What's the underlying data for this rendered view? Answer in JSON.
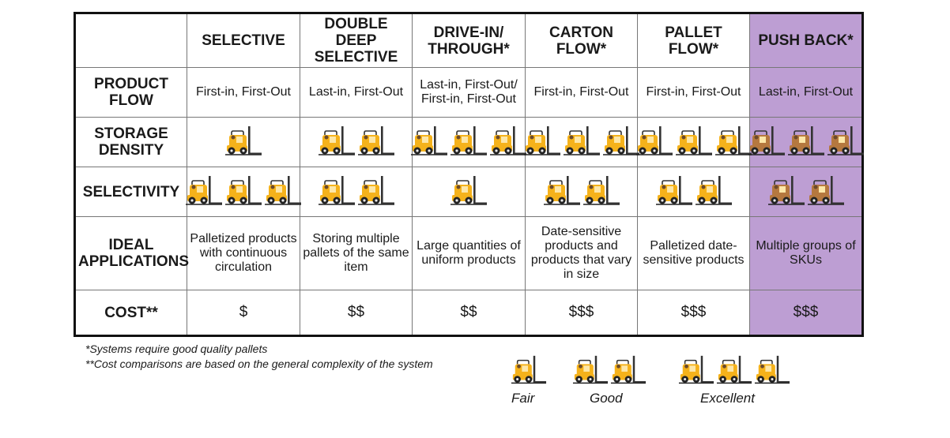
{
  "headers": [
    "",
    "SELECTIVE",
    "DOUBLE DEEP SELECTIVE",
    "DRIVE-IN/ THROUGH*",
    "CARTON FLOW*",
    "PALLET FLOW*",
    "PUSH BACK*"
  ],
  "rows": {
    "flow": {
      "label": "PRODUCT FLOW",
      "cells": [
        "First-in, First-Out",
        "Last-in, First-Out",
        "Last-in, First-Out/ First-in, First-Out",
        "First-in, First-Out",
        "First-in, First-Out",
        "Last-in, First-Out"
      ]
    },
    "density": {
      "label": "STORAGE DENSITY",
      "counts": [
        1,
        2,
        3,
        3,
        3,
        3
      ]
    },
    "selectivity": {
      "label": "SELECTIVITY",
      "counts": [
        3,
        2,
        1,
        2,
        2,
        2
      ]
    },
    "apps": {
      "label": "IDEAL APPLICATIONS",
      "cells": [
        "Palletized products with continuous circulation",
        "Storing multiple pallets of the same item",
        "Large quantities of uniform products",
        "Date-sensitive products and products that vary in size",
        "Palletized date-sensitive products",
        "Multiple groups of SKUs"
      ]
    },
    "cost": {
      "label": "COST**",
      "cells": [
        "$",
        "$$",
        "$$",
        "$$$",
        "$$$",
        "$$$"
      ]
    }
  },
  "footnotes": {
    "line1": "*Systems require good quality pallets",
    "line2": "**Cost comparisons are based on the general complexity of the system"
  },
  "legend": {
    "fair": "Fair",
    "good": "Good",
    "excellent": "Excellent"
  },
  "colors": {
    "push_back_bg": "#bd9ed3",
    "forklift": "#f5b21b",
    "forklift_muted": "#b5783f"
  },
  "icons": {
    "rating": "forklift-icon"
  }
}
